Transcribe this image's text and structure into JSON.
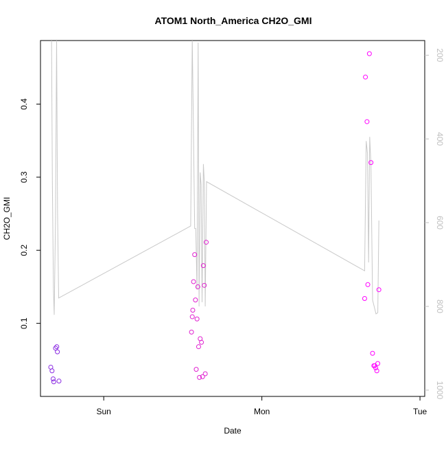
{
  "chart_data": {
    "type": "scatter",
    "title": "ATOM1 North_America CH2O_GMI",
    "xlabel": "Date",
    "ylabel": "CH2O_GMI",
    "x_ticks": [
      "Sun",
      "Mon",
      "Tue"
    ],
    "x_range": [
      -0.4,
      2.03
    ],
    "ylim": [
      0.0,
      0.487
    ],
    "y_ticks": [
      0.1,
      0.2,
      0.3,
      0.4
    ],
    "right_axis": {
      "ticks": [
        200,
        400,
        600,
        800,
        1000
      ],
      "range_top": 165,
      "range_bottom": 1015,
      "inverted": true,
      "color": "#bfbfbf"
    },
    "grid": false,
    "legend": "none",
    "colors": {
      "points_day1": "#8a2be2",
      "points_day2": "#e020d0",
      "points_day3": "#ff00ff",
      "line": "#c8c8c8"
    },
    "series": [
      {
        "type": "points",
        "color": "#8a2be2",
        "points": [
          {
            "x": -0.335,
            "y": 0.04
          },
          {
            "x": -0.327,
            "y": 0.035
          },
          {
            "x": -0.32,
            "y": 0.024
          },
          {
            "x": -0.316,
            "y": 0.02
          },
          {
            "x": -0.305,
            "y": 0.066
          },
          {
            "x": -0.297,
            "y": 0.068
          },
          {
            "x": -0.293,
            "y": 0.061
          },
          {
            "x": -0.283,
            "y": 0.021
          }
        ]
      },
      {
        "type": "points",
        "color": "#e020d0",
        "points": [
          {
            "x": 0.555,
            "y": 0.088
          },
          {
            "x": 0.56,
            "y": 0.109
          },
          {
            "x": 0.563,
            "y": 0.118
          },
          {
            "x": 0.568,
            "y": 0.157
          },
          {
            "x": 0.575,
            "y": 0.194
          },
          {
            "x": 0.58,
            "y": 0.132
          },
          {
            "x": 0.585,
            "y": 0.037
          },
          {
            "x": 0.59,
            "y": 0.106
          },
          {
            "x": 0.595,
            "y": 0.15
          },
          {
            "x": 0.6,
            "y": 0.068
          },
          {
            "x": 0.605,
            "y": 0.026
          },
          {
            "x": 0.61,
            "y": 0.079
          },
          {
            "x": 0.618,
            "y": 0.074
          },
          {
            "x": 0.625,
            "y": 0.027
          },
          {
            "x": 0.63,
            "y": 0.179
          },
          {
            "x": 0.636,
            "y": 0.152
          },
          {
            "x": 0.642,
            "y": 0.031
          },
          {
            "x": 0.648,
            "y": 0.211
          }
        ]
      },
      {
        "type": "points",
        "color": "#ff00ff",
        "points": [
          {
            "x": 1.65,
            "y": 0.134
          },
          {
            "x": 1.655,
            "y": 0.437
          },
          {
            "x": 1.665,
            "y": 0.376
          },
          {
            "x": 1.67,
            "y": 0.153
          },
          {
            "x": 1.68,
            "y": 0.469
          },
          {
            "x": 1.69,
            "y": 0.32
          },
          {
            "x": 1.7,
            "y": 0.059
          },
          {
            "x": 1.708,
            "y": 0.042
          },
          {
            "x": 1.714,
            "y": 0.042
          },
          {
            "x": 1.72,
            "y": 0.039
          },
          {
            "x": 1.727,
            "y": 0.035
          },
          {
            "x": 1.733,
            "y": 0.045
          },
          {
            "x": 1.74,
            "y": 0.146
          }
        ]
      },
      {
        "type": "line",
        "axis": "right",
        "color": "#c8c8c8",
        "points": [
          {
            "x": -0.33,
            "y": 160
          },
          {
            "x": -0.325,
            "y": 500
          },
          {
            "x": -0.318,
            "y": 760
          },
          {
            "x": -0.313,
            "y": 820
          },
          {
            "x": -0.305,
            "y": 590
          },
          {
            "x": -0.298,
            "y": 160
          },
          {
            "x": -0.292,
            "y": 580
          },
          {
            "x": -0.285,
            "y": 780
          },
          {
            "x": 0.55,
            "y": 608
          },
          {
            "x": 0.56,
            "y": 160
          },
          {
            "x": 0.568,
            "y": 400
          },
          {
            "x": 0.575,
            "y": 614
          },
          {
            "x": 0.582,
            "y": 614
          },
          {
            "x": 0.59,
            "y": 760
          },
          {
            "x": 0.597,
            "y": 170
          },
          {
            "x": 0.603,
            "y": 800
          },
          {
            "x": 0.61,
            "y": 480
          },
          {
            "x": 0.616,
            "y": 510
          },
          {
            "x": 0.622,
            "y": 790
          },
          {
            "x": 0.63,
            "y": 460
          },
          {
            "x": 0.636,
            "y": 500
          },
          {
            "x": 0.642,
            "y": 800
          },
          {
            "x": 0.65,
            "y": 502
          },
          {
            "x": 1.65,
            "y": 715
          },
          {
            "x": 1.66,
            "y": 405
          },
          {
            "x": 1.668,
            "y": 435
          },
          {
            "x": 1.675,
            "y": 695
          },
          {
            "x": 1.682,
            "y": 395
          },
          {
            "x": 1.69,
            "y": 460
          },
          {
            "x": 1.7,
            "y": 785
          },
          {
            "x": 1.71,
            "y": 800
          },
          {
            "x": 1.722,
            "y": 818
          },
          {
            "x": 1.733,
            "y": 815
          },
          {
            "x": 1.74,
            "y": 595
          }
        ]
      }
    ]
  }
}
